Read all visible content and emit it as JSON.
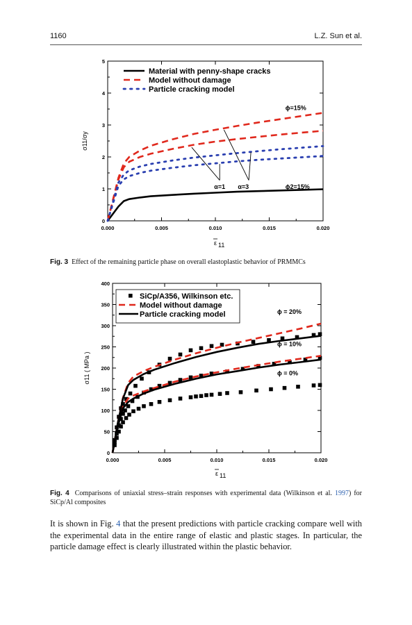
{
  "header": {
    "page_number": "1160",
    "authors": "L.Z. Sun et al."
  },
  "figures": [
    {
      "caption_label": "Fig. 3",
      "caption_text": "Effect of the remaining particle phase on overall elastoplastic behavior of PRMMCs",
      "legend": [
        "Material with penny-shape cracks",
        "Model without damage",
        "Particle cracking model"
      ],
      "y_axis_label": "σ̄11/σy",
      "x_axis_label": "ε̄11",
      "annotations": {
        "phi_top": "ϕ=15%",
        "alpha1": "α=1",
        "alpha3": "α=3",
        "phi2": "ϕ2=15%"
      }
    },
    {
      "caption_label": "Fig. 4",
      "caption_text_1": "Comparisons of uniaxial stress–strain responses with experimental data (Wilkinson et al. ",
      "caption_ref": "1997",
      "caption_text_2": ") for SiCp/Al composites",
      "legend": [
        "SiCp/A356, Wilkinson etc.",
        "Model without damage",
        "Particle cracking model"
      ],
      "y_axis_label": "σ̄11 ( MPa )",
      "x_axis_label": "ε̄11",
      "annotations": {
        "phi20": "ϕ = 20%",
        "phi10": "ϕ = 10%",
        "phi0": "ϕ = 0%"
      }
    }
  ],
  "body": {
    "text_1": "It is shown in Fig. ",
    "fig_ref": "4",
    "text_2": " that the present predictions with particle cracking compare well with the experimental data in the entire range of elastic and plastic stages. In particular, the particle damage effect is clearly illustrated within the plastic behavior."
  },
  "colors": {
    "black_line": "#000000",
    "red_dash": "#e0281c",
    "blue_dots": "#2a3fb0",
    "squares": "#000000"
  },
  "chart_data": [
    {
      "type": "line",
      "title": "",
      "xlabel": "ε̄11",
      "ylabel": "σ̄11/σy",
      "xlim": [
        0,
        0.02
      ],
      "ylim": [
        0,
        5
      ],
      "x_ticks": [
        0.0,
        0.005,
        0.01,
        0.015,
        0.02
      ],
      "x_tick_labels": [
        "0.000",
        "0.005",
        "0.010",
        "0.015",
        "0.020"
      ],
      "y_ticks": [
        0,
        1,
        2,
        3,
        4,
        5
      ],
      "y_tick_labels": [
        "0",
        "1",
        "2",
        "3",
        "4",
        "5"
      ],
      "legend_position": "top-left",
      "series": [
        {
          "name": "Material with penny-shape cracks",
          "style": "solid",
          "color": "#000000",
          "x": [
            0,
            0.001,
            0.0015,
            0.002,
            0.003,
            0.004,
            0.006,
            0.008,
            0.01,
            0.012,
            0.014,
            0.016,
            0.018,
            0.02
          ],
          "y": [
            0,
            0.45,
            0.62,
            0.68,
            0.73,
            0.77,
            0.81,
            0.85,
            0.88,
            0.91,
            0.93,
            0.95,
            0.97,
            0.99
          ]
        },
        {
          "name": "Model without damage",
          "style": "dashed",
          "color": "#e0281c",
          "x": [
            0,
            0.001,
            0.0015,
            0.002,
            0.003,
            0.004,
            0.006,
            0.008,
            0.01,
            0.012,
            0.014,
            0.016,
            0.018,
            0.02
          ],
          "y": [
            0,
            1.35,
            1.8,
            2.0,
            2.2,
            2.35,
            2.55,
            2.72,
            2.85,
            2.97,
            3.08,
            3.18,
            3.28,
            3.38
          ]
        },
        {
          "name": "",
          "style": "dashed",
          "color": "#e0281c",
          "x": [
            0,
            0.001,
            0.0015,
            0.002,
            0.003,
            0.004,
            0.006,
            0.008,
            0.01,
            0.012,
            0.014,
            0.016,
            0.018,
            0.02
          ],
          "y": [
            0,
            1.3,
            1.68,
            1.85,
            2.0,
            2.1,
            2.25,
            2.38,
            2.48,
            2.56,
            2.63,
            2.7,
            2.76,
            2.82
          ]
        },
        {
          "name": "Particle cracking model",
          "style": "dotted",
          "color": "#2a3fb0",
          "x": [
            0,
            0.001,
            0.0015,
            0.002,
            0.003,
            0.004,
            0.006,
            0.008,
            0.01,
            0.012,
            0.014,
            0.016,
            0.018,
            0.02
          ],
          "y": [
            0,
            1.2,
            1.45,
            1.58,
            1.7,
            1.78,
            1.89,
            1.98,
            2.05,
            2.12,
            2.18,
            2.24,
            2.29,
            2.34
          ]
        },
        {
          "name": "",
          "style": "dotted",
          "color": "#2a3fb0",
          "x": [
            0,
            0.001,
            0.0015,
            0.002,
            0.003,
            0.004,
            0.006,
            0.008,
            0.01,
            0.012,
            0.014,
            0.016,
            0.018,
            0.02
          ],
          "y": [
            0,
            1.1,
            1.3,
            1.4,
            1.5,
            1.57,
            1.66,
            1.74,
            1.8,
            1.86,
            1.91,
            1.95,
            1.99,
            2.03
          ]
        }
      ]
    },
    {
      "type": "line",
      "title": "",
      "xlabel": "ε̄11",
      "ylabel": "σ̄11 ( MPa )",
      "xlim": [
        0,
        0.02
      ],
      "ylim": [
        0,
        400
      ],
      "x_ticks": [
        0.0,
        0.005,
        0.01,
        0.015,
        0.02
      ],
      "x_tick_labels": [
        "0.000",
        "0.005",
        "0.010",
        "0.015",
        "0.020"
      ],
      "y_ticks": [
        0,
        50,
        100,
        150,
        200,
        250,
        300,
        350,
        400
      ],
      "y_tick_labels": [
        "0",
        "50",
        "100",
        "150",
        "200",
        "250",
        "300",
        "350",
        "400"
      ],
      "legend_position": "top-left",
      "series": [
        {
          "name": "SiCp/A356, Wilkinson etc.",
          "style": "markers",
          "color": "#000000",
          "x": [
            0.0002,
            0.0004,
            0.0006,
            0.0008,
            0.001,
            0.0013,
            0.0017,
            0.0022,
            0.0028,
            0.0035,
            0.0045,
            0.0055,
            0.0065,
            0.0075,
            0.0085,
            0.0095,
            0.0105,
            0.012,
            0.0135,
            0.015,
            0.0163,
            0.0177,
            0.0193,
            0.0199
          ],
          "y": [
            30,
            60,
            85,
            105,
            115,
            127,
            140,
            158,
            175,
            190,
            208,
            222,
            232,
            242,
            247,
            252,
            255,
            258,
            262,
            266,
            270,
            273,
            278,
            280
          ]
        },
        {
          "name": "",
          "style": "markers",
          "color": "#000000",
          "x": [
            0.0002,
            0.0004,
            0.0006,
            0.0008,
            0.001,
            0.0012,
            0.0015,
            0.0019,
            0.0024,
            0.003,
            0.0037,
            0.0045,
            0.0055,
            0.0065,
            0.0075,
            0.0085,
            0.0095,
            0.011,
            0.0125,
            0.014,
            0.0155,
            0.017,
            0.0185,
            0.0199
          ],
          "y": [
            25,
            45,
            65,
            80,
            92,
            100,
            110,
            122,
            132,
            142,
            150,
            158,
            165,
            172,
            178,
            182,
            187,
            192,
            198,
            205,
            210,
            214,
            220,
            224
          ]
        },
        {
          "name": "",
          "style": "markers",
          "color": "#000000",
          "x": [
            0.0002,
            0.0004,
            0.0006,
            0.0008,
            0.001,
            0.0013,
            0.0016,
            0.002,
            0.0025,
            0.003,
            0.0037,
            0.0045,
            0.0055,
            0.0065,
            0.0075,
            0.008,
            0.0085,
            0.009,
            0.0095,
            0.0103,
            0.011,
            0.0123,
            0.0138,
            0.0152,
            0.0165,
            0.0178,
            0.0193,
            0.0199
          ],
          "y": [
            18,
            35,
            50,
            62,
            72,
            82,
            90,
            98,
            104,
            110,
            115,
            120,
            124,
            128,
            131,
            133,
            134,
            136,
            137,
            139,
            141,
            143,
            147,
            150,
            153,
            156,
            159,
            160
          ]
        },
        {
          "name": "Model without damage",
          "style": "dashed",
          "color": "#e0281c",
          "x": [
            0,
            0.0005,
            0.001,
            0.0015,
            0.002,
            0.003,
            0.004,
            0.006,
            0.008,
            0.01,
            0.012,
            0.014,
            0.016,
            0.018,
            0.02
          ],
          "y": [
            0,
            70,
            130,
            165,
            180,
            193,
            203,
            220,
            235,
            248,
            260,
            271,
            282,
            293,
            305
          ]
        },
        {
          "name": "",
          "style": "dashed",
          "color": "#e0281c",
          "x": [
            0,
            0.0005,
            0.001,
            0.0015,
            0.002,
            0.003,
            0.004,
            0.006,
            0.008,
            0.01,
            0.012,
            0.014,
            0.016,
            0.018,
            0.02
          ],
          "y": [
            0,
            65,
            110,
            128,
            135,
            145,
            153,
            168,
            180,
            190,
            199,
            207,
            215,
            222,
            229
          ]
        },
        {
          "name": "Particle cracking model",
          "style": "solid",
          "color": "#000000",
          "x": [
            0,
            0.0005,
            0.001,
            0.0015,
            0.002,
            0.003,
            0.004,
            0.006,
            0.008,
            0.01,
            0.012,
            0.014,
            0.016,
            0.018,
            0.02
          ],
          "y": [
            0,
            70,
            128,
            160,
            172,
            186,
            196,
            212,
            226,
            238,
            248,
            257,
            264,
            270,
            276
          ]
        },
        {
          "name": "",
          "style": "solid",
          "color": "#000000",
          "x": [
            0,
            0.0005,
            0.001,
            0.0015,
            0.002,
            0.003,
            0.004,
            0.006,
            0.008,
            0.01,
            0.012,
            0.014,
            0.016,
            0.018,
            0.02
          ],
          "y": [
            0,
            62,
            105,
            120,
            128,
            140,
            149,
            163,
            175,
            185,
            193,
            201,
            208,
            214,
            220
          ]
        }
      ]
    }
  ]
}
